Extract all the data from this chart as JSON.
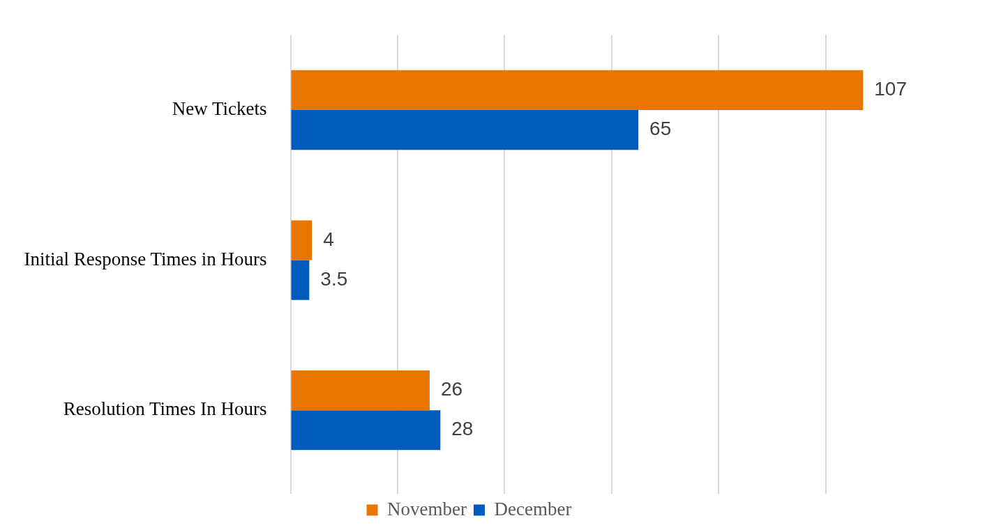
{
  "chart_data": {
    "type": "bar",
    "orientation": "horizontal",
    "categories": [
      "New Tickets",
      "Initial Response Times in Hours",
      "Resolution Times In Hours"
    ],
    "series": [
      {
        "name": "November",
        "color": "#e97500",
        "values": [
          107,
          4,
          26
        ]
      },
      {
        "name": "December",
        "color": "#005bbb",
        "values": [
          65,
          3.5,
          28
        ]
      }
    ],
    "xticks": [
      {
        "value": 0,
        "label": null
      },
      {
        "value": 20,
        "label": null
      },
      {
        "value": 40,
        "label": null
      },
      {
        "value": 60,
        "label": null
      },
      {
        "value": 80,
        "label": null
      },
      {
        "value": 100,
        "label": null
      }
    ],
    "tick_labels": "y",
    "grid": "x",
    "legend": "bottom",
    "data_labels": true
  }
}
